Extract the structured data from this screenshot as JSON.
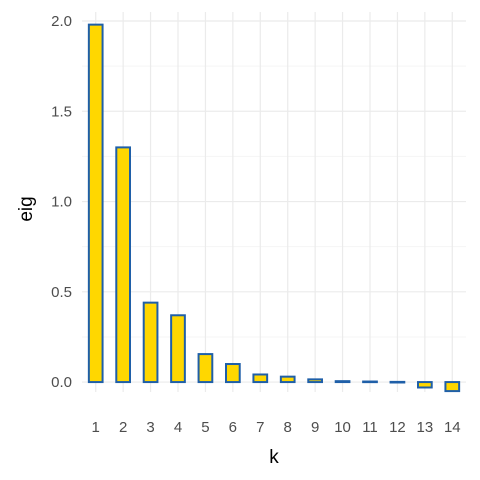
{
  "chart_data": {
    "type": "bar",
    "title": "",
    "xlabel": "k",
    "ylabel": "eig",
    "categories": [
      "1",
      "2",
      "3",
      "4",
      "5",
      "6",
      "7",
      "8",
      "9",
      "10",
      "11",
      "12",
      "13",
      "14"
    ],
    "values": [
      1.98,
      1.3,
      0.44,
      0.37,
      0.155,
      0.1,
      0.042,
      0.03,
      0.015,
      0.005,
      0.003,
      0.001,
      -0.03,
      -0.05
    ],
    "ylim": [
      -0.055,
      2.05
    ],
    "yticks": [
      0.0,
      0.5,
      1.0,
      1.5,
      2.0
    ],
    "ytick_labels": [
      "0.0",
      "0.5",
      "1.0",
      "1.5",
      "2.0"
    ],
    "grid": true,
    "legend": "none",
    "colors": {
      "bar_fill": "#FFD700",
      "bar_stroke": "#1F5FA8",
      "grid_major": "#EBEBEB",
      "grid_minor": "#F5F5F5",
      "tick_text": "#4D4D4D",
      "title_text": "#000000"
    }
  }
}
